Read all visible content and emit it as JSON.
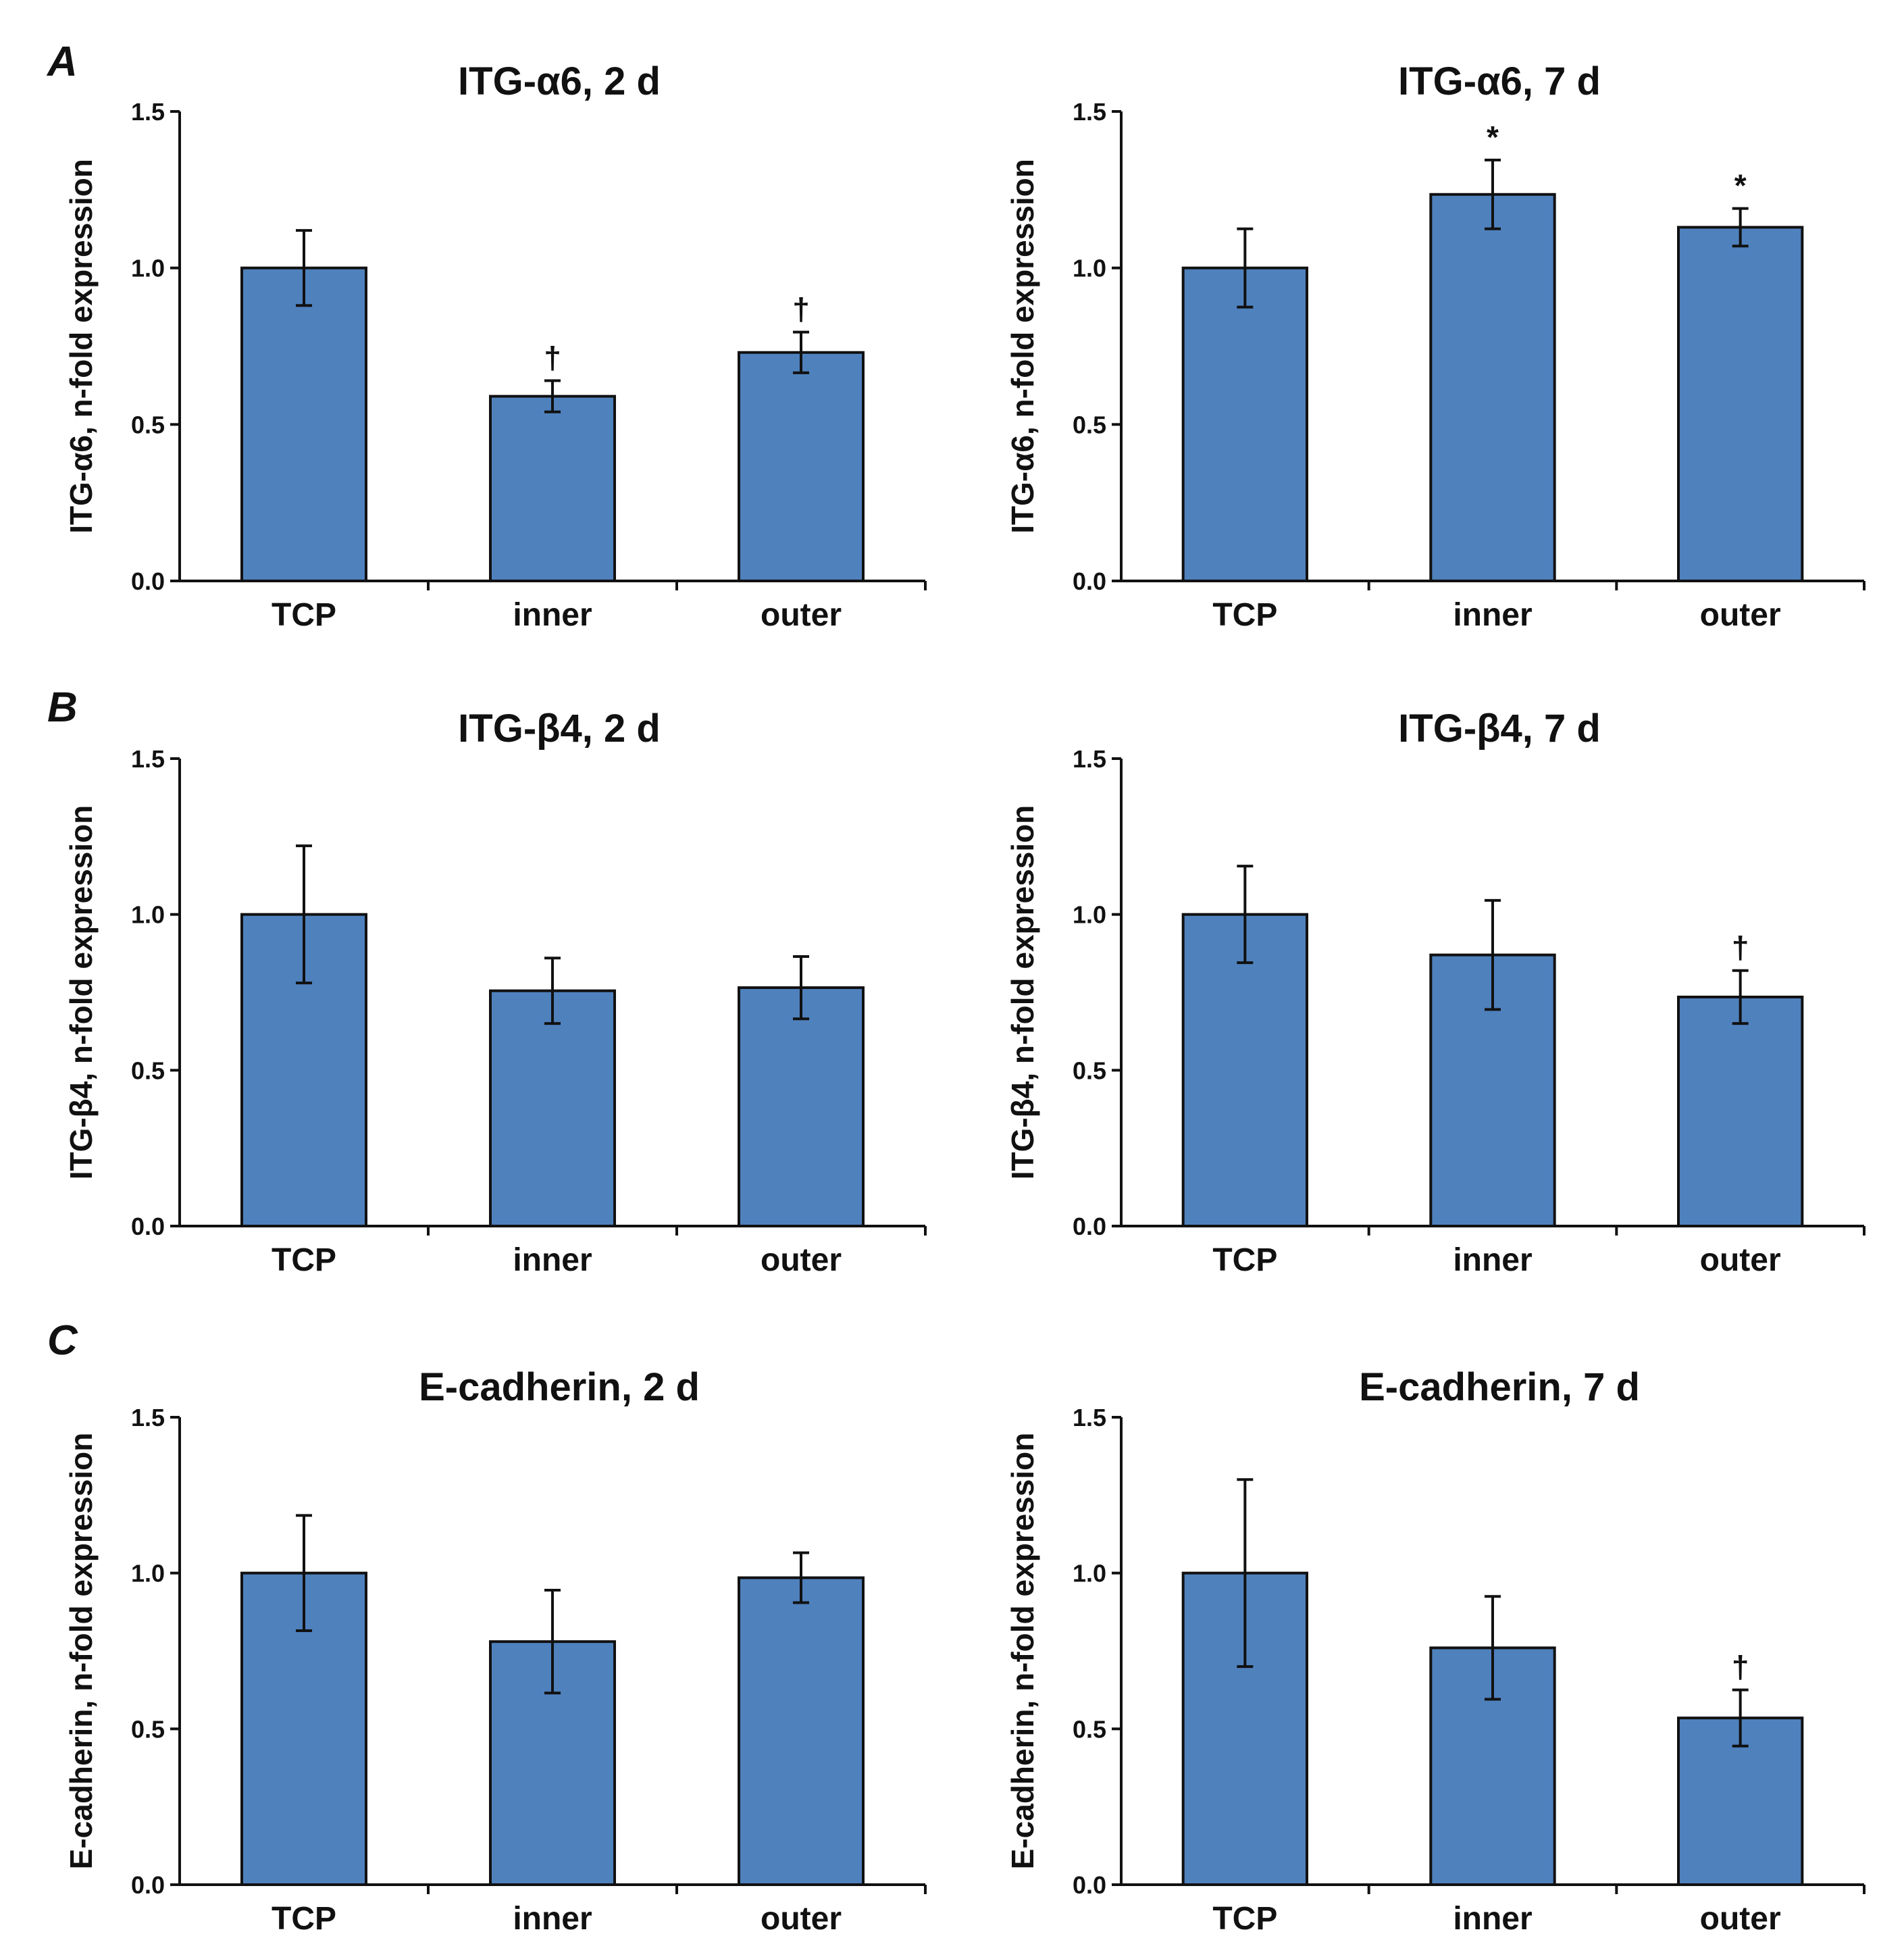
{
  "colors": {
    "bar": "#4f81bd",
    "stroke": "#111111",
    "background": "#ffffff"
  },
  "panel_letters": [
    "A",
    "B",
    "C"
  ],
  "chart_data": [
    {
      "type": "bar",
      "panel": "A",
      "title": "ITG-α6, 2 d",
      "ylabel": "ITG-α6, n-fold expression",
      "xlabel": "",
      "categories": [
        "TCP",
        "inner",
        "outer"
      ],
      "values": [
        1.0,
        0.59,
        0.73
      ],
      "errors": [
        0.12,
        0.05,
        0.065
      ],
      "annotations": [
        "",
        "†",
        "†"
      ],
      "ylim": [
        0,
        1.5
      ],
      "yticks": [
        "0.0",
        "0.5",
        "1.0",
        "1.5"
      ]
    },
    {
      "type": "bar",
      "panel": "",
      "title": "ITG-α6, 7 d",
      "ylabel": "ITG-α6, n-fold expression",
      "xlabel": "",
      "categories": [
        "TCP",
        "inner",
        "outer"
      ],
      "values": [
        1.0,
        1.235,
        1.13
      ],
      "errors": [
        0.125,
        0.11,
        0.06
      ],
      "annotations": [
        "",
        "*",
        "*"
      ],
      "ylim": [
        0,
        1.5
      ],
      "yticks": [
        "0.0",
        "0.5",
        "1.0",
        "1.5"
      ]
    },
    {
      "type": "bar",
      "panel": "B",
      "title": "ITG-β4, 2 d",
      "ylabel": "ITG-β4, n-fold expression",
      "xlabel": "",
      "categories": [
        "TCP",
        "inner",
        "outer"
      ],
      "values": [
        1.0,
        0.755,
        0.765
      ],
      "errors": [
        0.22,
        0.105,
        0.1
      ],
      "annotations": [
        "",
        "",
        ""
      ],
      "ylim": [
        0,
        1.5
      ],
      "yticks": [
        "0.0",
        "0.5",
        "1.0",
        "1.5"
      ]
    },
    {
      "type": "bar",
      "panel": "",
      "title": "ITG-β4, 7 d",
      "ylabel": "ITG-β4, n-fold expression",
      "xlabel": "",
      "categories": [
        "TCP",
        "inner",
        "outer"
      ],
      "values": [
        1.0,
        0.87,
        0.735
      ],
      "errors": [
        0.155,
        0.175,
        0.085
      ],
      "annotations": [
        "",
        "",
        "†"
      ],
      "ylim": [
        0,
        1.5
      ],
      "yticks": [
        "0.0",
        "0.5",
        "1.0",
        "1.5"
      ]
    },
    {
      "type": "bar",
      "panel": "C",
      "title": "E-cadherin, 2 d",
      "ylabel": "E-cadherin, n-fold expression",
      "xlabel": "",
      "categories": [
        "TCP",
        "inner",
        "outer"
      ],
      "values": [
        1.0,
        0.78,
        0.985
      ],
      "errors": [
        0.185,
        0.165,
        0.08
      ],
      "annotations": [
        "",
        "",
        ""
      ],
      "ylim": [
        0,
        1.5
      ],
      "yticks": [
        "0.0",
        "0.5",
        "1.0",
        "1.5"
      ]
    },
    {
      "type": "bar",
      "panel": "",
      "title": "E-cadherin, 7 d",
      "ylabel": "E-cadherin, n-fold expression",
      "xlabel": "",
      "categories": [
        "TCP",
        "inner",
        "outer"
      ],
      "values": [
        1.0,
        0.76,
        0.535
      ],
      "errors": [
        0.3,
        0.165,
        0.09
      ],
      "annotations": [
        "",
        "",
        "†"
      ],
      "ylim": [
        0,
        1.5
      ],
      "yticks": [
        "0.0",
        "0.5",
        "1.0",
        "1.5"
      ]
    }
  ]
}
